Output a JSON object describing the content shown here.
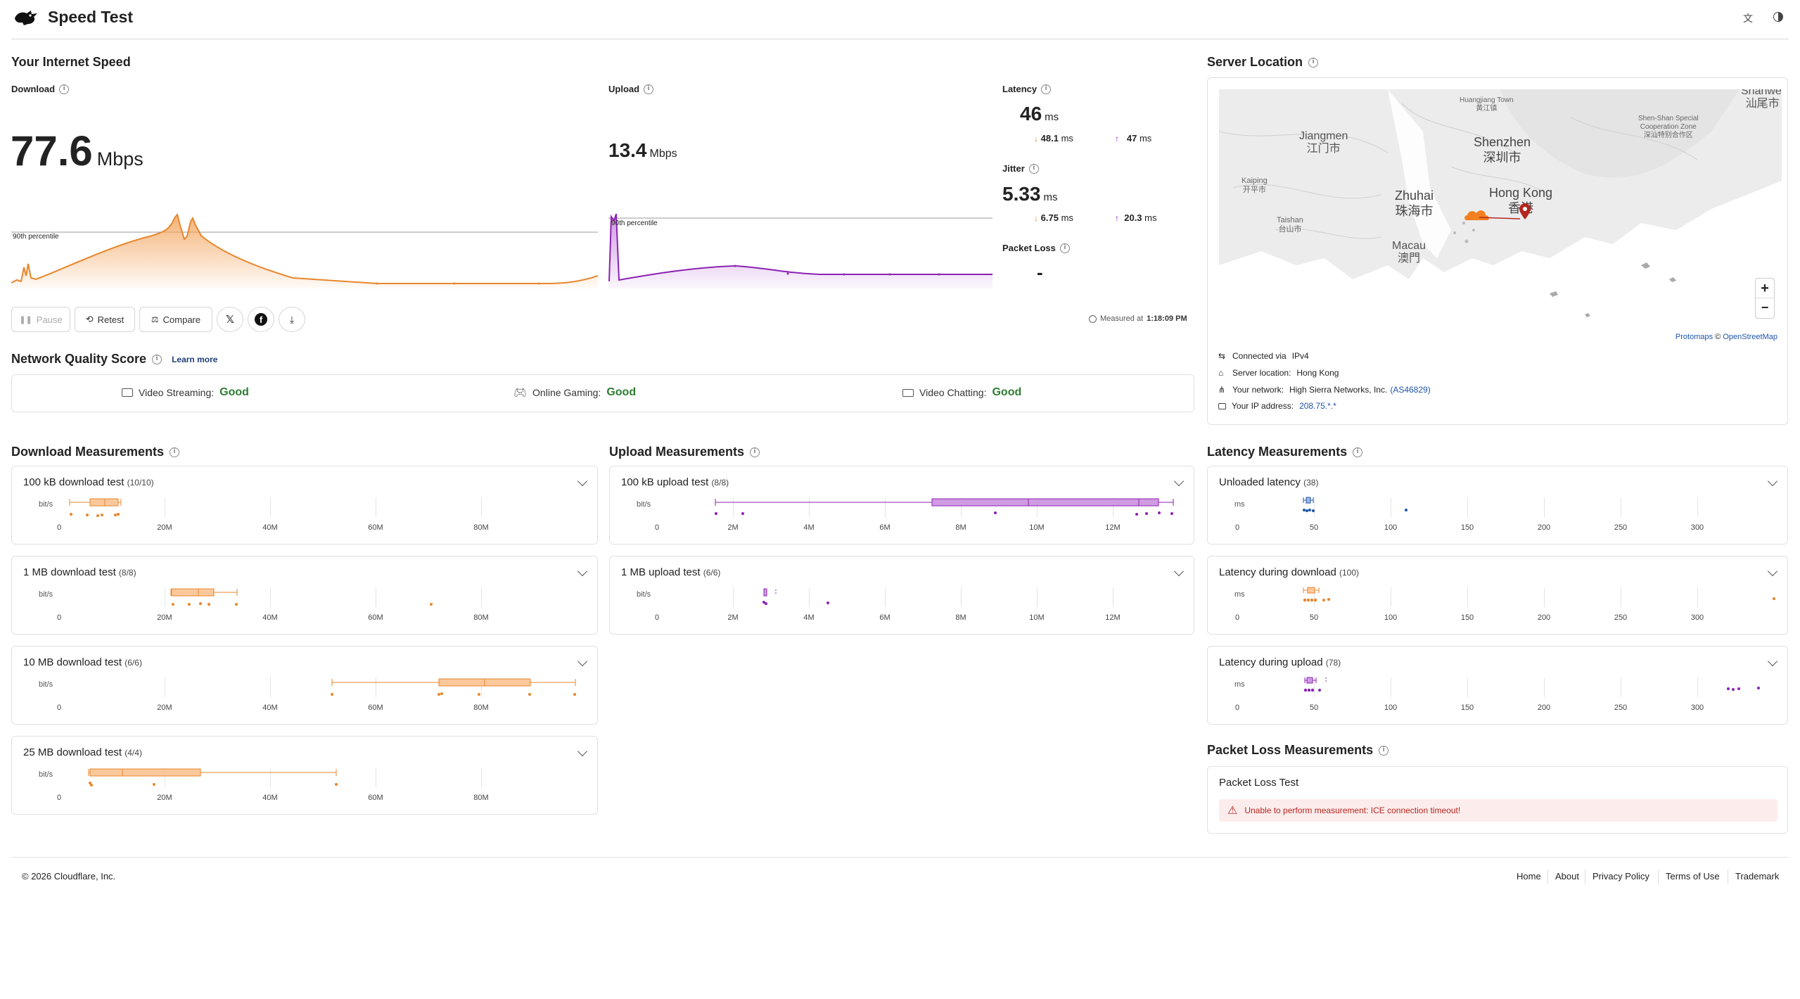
{
  "header": {
    "title": "Speed Test",
    "translate_icon": "translate-icon",
    "theme_icon": "contrast-icon"
  },
  "speed": {
    "section_title": "Your Internet Speed",
    "download_label": "Download",
    "download_value": "77.6",
    "download_unit": "Mbps",
    "upload_label": "Upload",
    "upload_value": "13.4",
    "upload_unit": "Mbps",
    "percentile_label": "90th percentile",
    "percentile_label_upload": "90th percentile",
    "latency_label": "Latency",
    "latency_value": "46",
    "latency_unit": "ms",
    "latency_down": "48.1",
    "latency_up": "47",
    "ms": "ms",
    "jitter_label": "Jitter",
    "jitter_value": "5.33",
    "jitter_down": "6.75",
    "jitter_up": "20.3",
    "packet_loss_label": "Packet Loss",
    "packet_loss_value": "-",
    "measured_prefix": "Measured at",
    "measured_time": "1:18:09 PM"
  },
  "actions": {
    "pause": "Pause",
    "retest": "Retest",
    "compare": "Compare"
  },
  "quality": {
    "title": "Network Quality Score",
    "learn_more": "Learn more",
    "items": [
      {
        "label": "Video Streaming:",
        "value": "Good"
      },
      {
        "label": "Online Gaming:",
        "value": "Good"
      },
      {
        "label": "Video Chatting:",
        "value": "Good"
      }
    ]
  },
  "server": {
    "title": "Server Location",
    "map_labels": {
      "shanwei": "Shanwei",
      "shanwei_cn": "汕尾市",
      "huangjiang": "Huangjiang Town",
      "huangjiang_cn": "黄江镇",
      "jiangmen": "Jiangmen",
      "jiangmen_cn": "江门市",
      "shenzhen": "Shenzhen",
      "shenzhen_cn": "深圳市",
      "shenshan": "Shen-Shan Special",
      "shenshan2": "Cooperation Zone",
      "shenshan_cn": "深汕特别合作区",
      "kaiping": "Kaiping",
      "kaiping_cn": "开平市",
      "zhuhai": "Zhuhai",
      "zhuhai_cn": "珠海市",
      "hongkong": "Hong Kong",
      "hongkong_cn": "香港",
      "taishan": "Taishan",
      "taishan_cn": "台山市",
      "macau": "Macau",
      "macau_cn": "澳門"
    },
    "attribution_a": "Protomaps",
    "attribution_sep": " © ",
    "attribution_b": "OpenStreetMap",
    "zoom_in": "+",
    "zoom_out": "−",
    "connected_label": "Connected via",
    "connected_value": "IPv4",
    "location_label": "Server location:",
    "location_value": "Hong Kong",
    "network_label": "Your network:",
    "network_value": "High Sierra Networks, Inc.",
    "network_asn": "(AS46829)",
    "ip_label": "Your IP address:",
    "ip_value": "208.75.*.*"
  },
  "download_measurements": {
    "title": "Download Measurements",
    "unit": "bit/s",
    "ticks": [
      "0",
      "20M",
      "40M",
      "60M",
      "80M"
    ],
    "tests": [
      {
        "name": "100 kB download test",
        "count": "(10/10)"
      },
      {
        "name": "1 MB download test",
        "count": "(8/8)"
      },
      {
        "name": "10 MB download test",
        "count": "(6/6)"
      },
      {
        "name": "25 MB download test",
        "count": "(4/4)"
      }
    ]
  },
  "upload_measurements": {
    "title": "Upload Measurements",
    "unit": "bit/s",
    "ticks": [
      "0",
      "2M",
      "4M",
      "6M",
      "8M",
      "10M",
      "12M"
    ],
    "tests": [
      {
        "name": "100 kB upload test",
        "count": "(8/8)"
      },
      {
        "name": "1 MB upload test",
        "count": "(6/6)"
      }
    ]
  },
  "latency_measurements": {
    "title": "Latency Measurements",
    "unit": "ms",
    "ticks": [
      "0",
      "50",
      "100",
      "150",
      "200",
      "250",
      "300"
    ],
    "tests": [
      {
        "name": "Unloaded latency",
        "count": "(38)"
      },
      {
        "name": "Latency during download",
        "count": "(100)"
      },
      {
        "name": "Latency during upload",
        "count": "(78)"
      }
    ]
  },
  "packet_loss": {
    "title": "Packet Loss Measurements",
    "test_name": "Packet Loss Test",
    "error": "Unable to perform measurement: ICE connection timeout!"
  },
  "footer": {
    "copyright": "© 2026 Cloudflare, Inc.",
    "links": [
      "Home",
      "About",
      "Privacy Policy",
      "Terms of Use",
      "Trademark"
    ]
  },
  "colors": {
    "download": "#e8862c",
    "upload": "#8c22b3",
    "latency": "#1f55a7",
    "good": "#2e7d32",
    "error": "#b3261e"
  }
}
